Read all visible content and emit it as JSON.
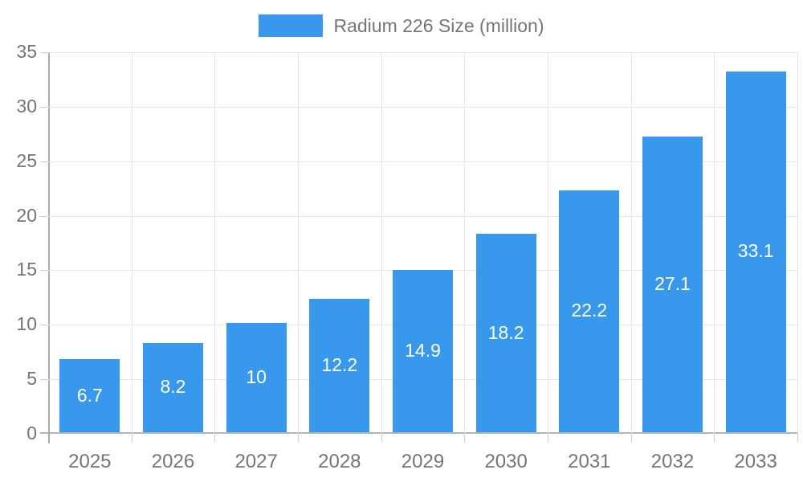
{
  "chart_data": {
    "type": "bar",
    "title": "Radium 226 Size (million)",
    "legend": [
      "Radium 226 Size (million)"
    ],
    "legend_position": "top-center",
    "categories": [
      "2025",
      "2026",
      "2027",
      "2028",
      "2029",
      "2030",
      "2031",
      "2032",
      "2033"
    ],
    "values": [
      6.7,
      8.2,
      10,
      12.2,
      14.9,
      18.2,
      22.2,
      27.1,
      33.1
    ],
    "value_labels": [
      "6.7",
      "8.2",
      "10",
      "12.2",
      "14.9",
      "18.2",
      "22.2",
      "27.1",
      "33.1"
    ],
    "xlabel": "",
    "ylabel": "",
    "ylim": [
      0,
      35
    ],
    "yticks": [
      0,
      5,
      10,
      15,
      20,
      25,
      30,
      35
    ],
    "grid": true,
    "colors": {
      "bar": "#3899ec",
      "grid": "#e6e6e6",
      "axis": "#aaaaaa",
      "tick": "#cccccc",
      "axis_text": "#757575",
      "value_text": "#ffffff"
    }
  }
}
